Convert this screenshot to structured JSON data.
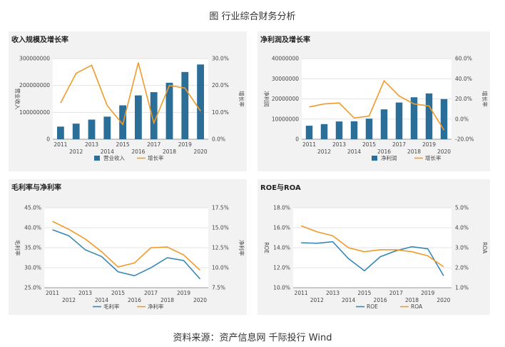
{
  "title": "图 行业综合财务分析",
  "source": "资料来源：资产信息网 千际投行 Wind",
  "colors": {
    "bar": "#2b6f98",
    "orange": "#f09a2a",
    "blue": "#3889b5",
    "grid": "#e3e3e3"
  },
  "chart_data": [
    {
      "type": "bar+line",
      "title": "收入规模及增长率",
      "categories": [
        "2011",
        "2012",
        "2013",
        "2014",
        "2015",
        "2016",
        "2017",
        "2018",
        "2019",
        "2020"
      ],
      "ylabel": "营业收入",
      "y2label": "增长率",
      "yticks": [
        "0",
        "100000000",
        "200000000",
        "300000000"
      ],
      "y2ticks": [
        "0.0%",
        "10.0%",
        "20.0%",
        "30.0%"
      ],
      "ylim": [
        0,
        300000000
      ],
      "y2lim": [
        0,
        30
      ],
      "series": [
        {
          "name": "营业收入",
          "kind": "bar",
          "axis": "left",
          "values": [
            47000000,
            58000000,
            73000000,
            84000000,
            126000000,
            163000000,
            175000000,
            210000000,
            250000000,
            278000000
          ]
        },
        {
          "name": "增长率",
          "kind": "line",
          "axis": "right",
          "values": [
            13.5,
            24.5,
            27.5,
            12.5,
            5.5,
            28.5,
            6.0,
            20.0,
            19.0,
            10.5
          ]
        }
      ]
    },
    {
      "type": "bar+line",
      "title": "净利润及增长率",
      "categories": [
        "2011",
        "2012",
        "2013",
        "2014",
        "2015",
        "2016",
        "2017",
        "2018",
        "2019",
        "2020"
      ],
      "ylabel": "净利润",
      "y2label": "增长率",
      "yticks": [
        "0",
        "10000000",
        "20000000",
        "30000000",
        "40000000"
      ],
      "y2ticks": [
        "-20.0%",
        "0.0%",
        "20.0%",
        "40.0%",
        "60.0%"
      ],
      "ylim": [
        0,
        40000000
      ],
      "y2lim": [
        -20,
        60
      ],
      "series": [
        {
          "name": "净利润",
          "kind": "bar",
          "axis": "left",
          "values": [
            6700000,
            7500000,
            8800000,
            8900000,
            10200000,
            14800000,
            18200000,
            20800000,
            22700000,
            19900000
          ]
        },
        {
          "name": "增长率",
          "kind": "line",
          "axis": "right",
          "values": [
            12,
            15,
            16,
            1,
            3,
            38,
            23,
            15,
            13,
            -11
          ]
        }
      ]
    },
    {
      "type": "line",
      "title": "毛利率与净利率",
      "categories": [
        "2011",
        "2012",
        "2013",
        "2014",
        "2015",
        "2016",
        "2017",
        "2018",
        "2019",
        "2020"
      ],
      "ylabel": "毛利率",
      "y2label": "净利率",
      "yticks": [
        "25.0%",
        "30.0%",
        "35.0%",
        "40.0%",
        "45.0%"
      ],
      "y2ticks": [
        "7.5%",
        "10.0%",
        "12.5%",
        "15.0%",
        "17.5%"
      ],
      "ylim": [
        25,
        45
      ],
      "y2lim": [
        7.5,
        17.5
      ],
      "series": [
        {
          "name": "毛利率",
          "axis": "left",
          "color": "blue",
          "values": [
            39.5,
            38.0,
            34.5,
            32.8,
            29.0,
            28.0,
            30.0,
            32.5,
            31.8,
            27.2
          ]
        },
        {
          "name": "净利率",
          "axis": "right",
          "color": "orange",
          "values": [
            15.8,
            14.8,
            13.6,
            12.0,
            10.1,
            10.6,
            12.5,
            12.6,
            11.6,
            9.7
          ]
        }
      ]
    },
    {
      "type": "line",
      "title": "ROE与ROA",
      "categories": [
        "2011",
        "2012",
        "2013",
        "2014",
        "2015",
        "2016",
        "2017",
        "2018",
        "2019",
        "2020"
      ],
      "ylabel": "ROE",
      "y2label": "ROA",
      "yticks": [
        "10.0%",
        "12.0%",
        "14.0%",
        "16.0%",
        "18.0%"
      ],
      "y2ticks": [
        "1.0%",
        "2.0%",
        "3.0%",
        "4.0%",
        "5.0%"
      ],
      "ylim": [
        10,
        18
      ],
      "y2lim": [
        1,
        5
      ],
      "series": [
        {
          "name": "ROE",
          "axis": "left",
          "color": "blue",
          "values": [
            14.5,
            14.45,
            14.6,
            12.9,
            11.7,
            13.1,
            13.7,
            14.1,
            13.9,
            11.2
          ]
        },
        {
          "name": "ROA",
          "axis": "right",
          "color": "orange",
          "values": [
            4.1,
            3.8,
            3.6,
            3.0,
            2.8,
            2.9,
            2.9,
            2.8,
            2.6,
            2.05
          ]
        }
      ]
    }
  ]
}
